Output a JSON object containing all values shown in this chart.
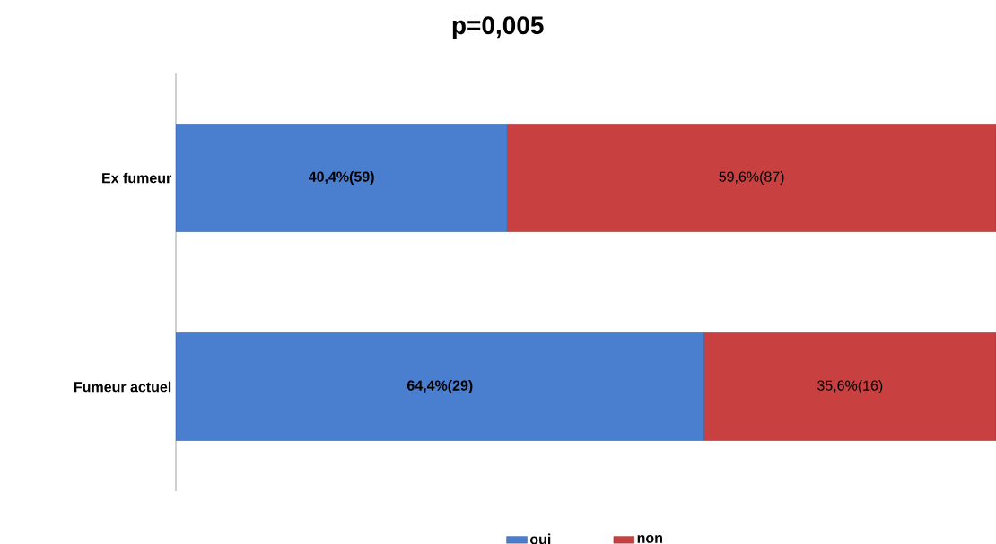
{
  "chart_data": {
    "type": "bar",
    "orientation": "horizontal",
    "stacked": true,
    "title": "p=0,005",
    "categories": [
      "Ex fumeur",
      "Fumeur actuel"
    ],
    "series": [
      {
        "name": "oui",
        "color": "#4a7fcf",
        "values": [
          40.4,
          64.4
        ],
        "value_labels": [
          "40,4%(59)",
          "64,4%(29)"
        ]
      },
      {
        "name": "non",
        "color": "#c94040",
        "values": [
          59.6,
          35.6
        ],
        "value_labels": [
          "59,6%(87)",
          "35,6%(16)"
        ]
      }
    ],
    "xlim": [
      0,
      100
    ],
    "tick_labels": "y",
    "legend": "bottom"
  }
}
